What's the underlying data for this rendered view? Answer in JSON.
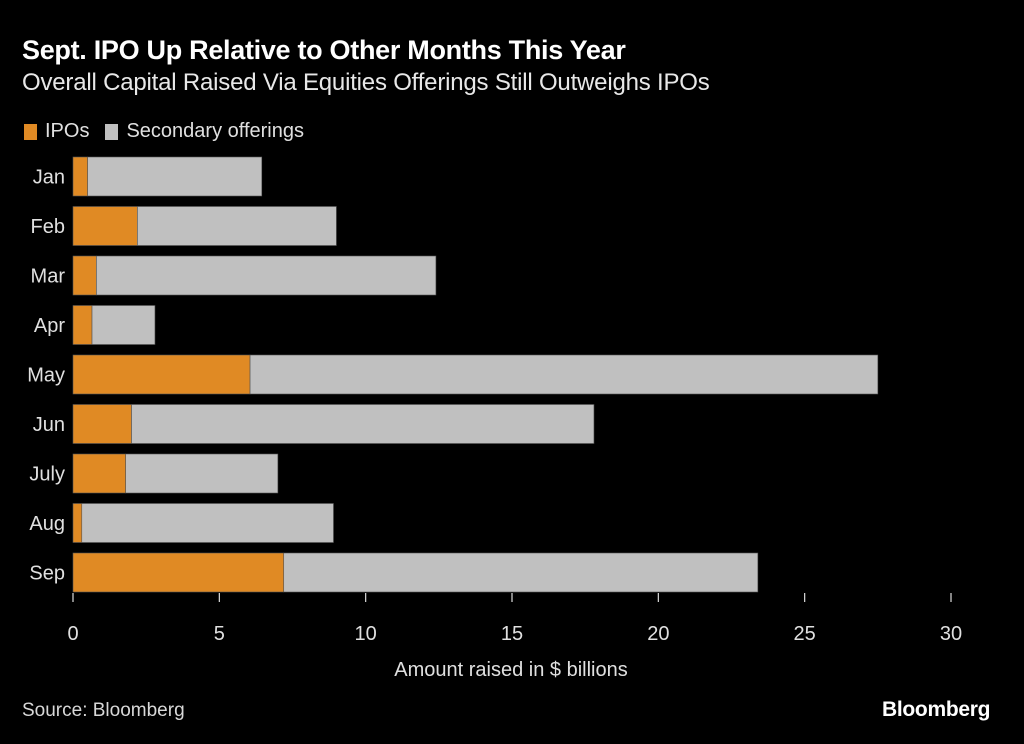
{
  "chart_data": {
    "type": "bar",
    "orientation": "horizontal",
    "stacked": true,
    "title": "Sept. IPO Up Relative to Other Months This Year",
    "subtitle": "Overall Capital Raised Via Equities Offerings Still Outweighs IPOs",
    "xlabel": "Amount raised in $ billions",
    "ylabel": "",
    "xlim": [
      0,
      30
    ],
    "xticks": [
      0,
      5,
      10,
      15,
      20,
      25,
      30
    ],
    "grid": false,
    "legend_position": "top-left",
    "categories": [
      "Jan",
      "Feb",
      "Mar",
      "Apr",
      "May",
      "Jun",
      "July",
      "Aug",
      "Sep"
    ],
    "series": [
      {
        "name": "IPOs",
        "color": "#e08a24",
        "values": [
          0.5,
          2.2,
          0.8,
          0.65,
          6.05,
          2.0,
          1.8,
          0.3,
          7.2
        ]
      },
      {
        "name": "Secondary offerings",
        "color": "#c0c0c0",
        "values": [
          5.95,
          6.8,
          11.6,
          2.15,
          21.45,
          15.8,
          5.2,
          8.6,
          16.2
        ]
      }
    ]
  },
  "footer": {
    "source": "Source: Bloomberg",
    "brand": "Bloomberg"
  }
}
